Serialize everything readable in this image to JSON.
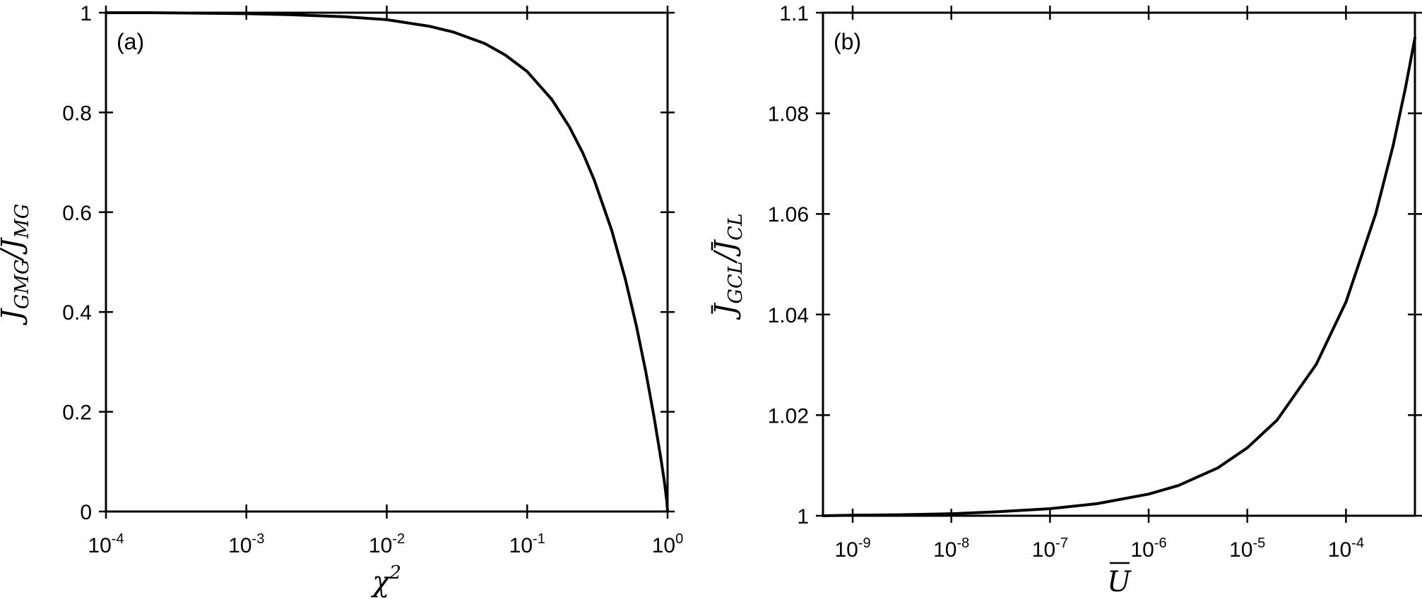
{
  "chart_data": [
    {
      "type": "line",
      "panel_label": "(a)",
      "xscale": "log",
      "xlim": [
        0.0001,
        1
      ],
      "ylim": [
        0,
        1
      ],
      "xlabel": {
        "base": "χ",
        "sup": "2"
      },
      "ylabel": {
        "num": "J",
        "num_sub": "GMG",
        "den": "J",
        "den_sub": "MG"
      },
      "xticks": [
        {
          "value": 0.0001,
          "base": "10",
          "exp": "-4"
        },
        {
          "value": 0.001,
          "base": "10",
          "exp": "-3"
        },
        {
          "value": 0.01,
          "base": "10",
          "exp": "-2"
        },
        {
          "value": 0.1,
          "base": "10",
          "exp": "-1"
        },
        {
          "value": 1,
          "base": "10",
          "exp": "0"
        }
      ],
      "yticks": [
        {
          "value": 0,
          "label": "0"
        },
        {
          "value": 0.2,
          "label": "0.2"
        },
        {
          "value": 0.4,
          "label": "0.4"
        },
        {
          "value": 0.6,
          "label": "0.6"
        },
        {
          "value": 0.8,
          "label": "0.8"
        },
        {
          "value": 1,
          "label": "1"
        }
      ],
      "series": [
        {
          "x": [
            0.0001,
            0.0002,
            0.0005,
            0.001,
            0.002,
            0.005,
            0.01,
            0.02,
            0.03,
            0.05,
            0.07,
            0.1,
            0.15,
            0.2,
            0.25,
            0.3,
            0.4,
            0.5,
            0.6,
            0.7,
            0.8,
            0.9,
            0.95,
            0.99,
            1.0
          ],
          "y": [
            1.0,
            1.0,
            0.999,
            0.998,
            0.996,
            0.992,
            0.986,
            0.973,
            0.961,
            0.938,
            0.915,
            0.882,
            0.826,
            0.771,
            0.718,
            0.665,
            0.564,
            0.466,
            0.372,
            0.28,
            0.191,
            0.103,
            0.059,
            0.019,
            0.0
          ]
        }
      ],
      "grid": false
    },
    {
      "type": "line",
      "panel_label": "(b)",
      "xscale": "log",
      "xlim": [
        5e-10,
        0.0005
      ],
      "ylim": [
        1,
        1.1
      ],
      "xlabel": {
        "base": "U"
      },
      "ylabel": {
        "num": "J",
        "num_sub": "GCL",
        "den": "J",
        "den_sub": "CL"
      },
      "xticks": [
        {
          "value": 1e-09,
          "base": "10",
          "exp": "-9"
        },
        {
          "value": 1e-08,
          "base": "10",
          "exp": "-8"
        },
        {
          "value": 1e-07,
          "base": "10",
          "exp": "-7"
        },
        {
          "value": 1e-06,
          "base": "10",
          "exp": "-6"
        },
        {
          "value": 1e-05,
          "base": "10",
          "exp": "-5"
        },
        {
          "value": 0.0001,
          "base": "10",
          "exp": "-4"
        }
      ],
      "yticks": [
        {
          "value": 1,
          "label": "1"
        },
        {
          "value": 1.02,
          "label": "1.02"
        },
        {
          "value": 1.04,
          "label": "1.04"
        },
        {
          "value": 1.06,
          "label": "1.06"
        },
        {
          "value": 1.08,
          "label": "1.08"
        },
        {
          "value": 1.1,
          "label": "1.1"
        }
      ],
      "series": [
        {
          "x": [
            5e-10,
            1e-09,
            3e-09,
            1e-08,
            3e-08,
            1e-07,
            3e-07,
            1e-06,
            2e-06,
            5e-06,
            1e-05,
            2e-05,
            5e-05,
            0.0001,
            0.0002,
            0.0003,
            0.0004,
            0.0005
          ],
          "y": [
            1.0,
            1.0001,
            1.0002,
            1.0004,
            1.0008,
            1.0014,
            1.0024,
            1.0043,
            1.006,
            1.0095,
            1.0135,
            1.019,
            1.0301,
            1.0425,
            1.06,
            1.0735,
            1.085,
            1.095
          ]
        }
      ],
      "grid": false
    }
  ]
}
